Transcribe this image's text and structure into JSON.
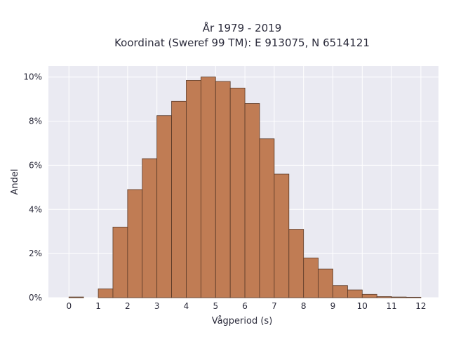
{
  "chart_data": {
    "type": "bar",
    "title": "År 1979 - 2019",
    "subtitle": "Koordinat (Sweref 99 TM): E 913075, N 6514121",
    "xlabel": "Vågperiod (s)",
    "ylabel": "Andel",
    "xlim": [
      -0.7,
      12.6
    ],
    "ylim": [
      0,
      10.5
    ],
    "x_ticks": [
      0,
      1,
      2,
      3,
      4,
      5,
      6,
      7,
      8,
      9,
      10,
      11,
      12
    ],
    "y_ticks": [
      0,
      2,
      4,
      6,
      8,
      10
    ],
    "y_tick_labels": [
      "0%",
      "2%",
      "4%",
      "6%",
      "8%",
      "10%"
    ],
    "grid": true,
    "bin_width": 0.5,
    "bins": [
      {
        "start": 0.0,
        "value": 0.03
      },
      {
        "start": 0.5,
        "value": 0.0
      },
      {
        "start": 1.0,
        "value": 0.4
      },
      {
        "start": 1.5,
        "value": 3.2
      },
      {
        "start": 2.0,
        "value": 4.9
      },
      {
        "start": 2.5,
        "value": 6.3
      },
      {
        "start": 3.0,
        "value": 8.25
      },
      {
        "start": 3.5,
        "value": 8.9
      },
      {
        "start": 4.0,
        "value": 9.85
      },
      {
        "start": 4.5,
        "value": 10.0
      },
      {
        "start": 5.0,
        "value": 9.8
      },
      {
        "start": 5.5,
        "value": 9.5
      },
      {
        "start": 6.0,
        "value": 8.8
      },
      {
        "start": 6.5,
        "value": 7.2
      },
      {
        "start": 7.0,
        "value": 5.6
      },
      {
        "start": 7.5,
        "value": 3.1
      },
      {
        "start": 8.0,
        "value": 1.8
      },
      {
        "start": 8.5,
        "value": 1.3
      },
      {
        "start": 9.0,
        "value": 0.55
      },
      {
        "start": 9.5,
        "value": 0.35
      },
      {
        "start": 10.0,
        "value": 0.15
      },
      {
        "start": 10.5,
        "value": 0.05
      },
      {
        "start": 11.0,
        "value": 0.03
      },
      {
        "start": 11.5,
        "value": 0.02
      }
    ],
    "colors": {
      "bar_fill": "#c07c54",
      "bar_edge": "#5a3a28",
      "plot_background": "#eaeaf2",
      "grid": "#ffffff"
    }
  }
}
